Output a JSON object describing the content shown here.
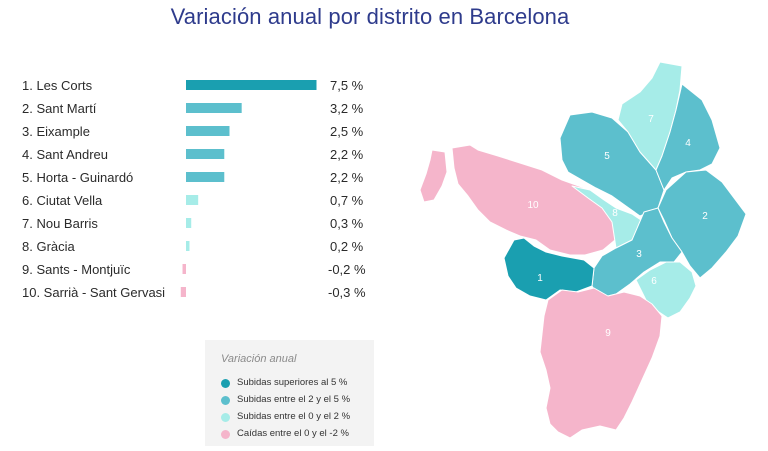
{
  "title": "Variación anual por distrito en Barcelona",
  "colors": {
    "strong_teal": "#1a9fb0",
    "medium_teal": "#5cbfcd",
    "light_teal": "#a6ece8",
    "pink": "#f5b5cb"
  },
  "chart_data": {
    "type": "bar",
    "orientation": "horizontal",
    "title": "Variación anual por distrito en Barcelona",
    "categories": [
      "1. Les Corts",
      "2. Sant Martí",
      "3. Eixample",
      "4. Sant Andreu",
      "5. Horta - Guinardó",
      "6. Ciutat Vella",
      "7. Nou Barris",
      "8. Gràcia",
      "9. Sants - Montjuïc",
      "10. Sarrià - Sant Gervasi"
    ],
    "values": [
      7.5,
      3.2,
      2.5,
      2.2,
      2.2,
      0.7,
      0.3,
      0.2,
      -0.2,
      -0.3
    ],
    "value_labels": [
      "7,5 %",
      "3,2 %",
      "2,5 %",
      "2,2 %",
      "2,2 %",
      "0,7 %",
      "0,3 %",
      "0,2 %",
      "-0,2 %",
      "-0,3 %"
    ],
    "grid": false,
    "legend": "bottom-center"
  },
  "map": {
    "districts": [
      {
        "number": "1",
        "category": "strong_teal"
      },
      {
        "number": "2",
        "category": "medium_teal"
      },
      {
        "number": "3",
        "category": "medium_teal"
      },
      {
        "number": "4",
        "category": "medium_teal"
      },
      {
        "number": "5",
        "category": "medium_teal"
      },
      {
        "number": "6",
        "category": "light_teal"
      },
      {
        "number": "7",
        "category": "light_teal"
      },
      {
        "number": "8",
        "category": "light_teal"
      },
      {
        "number": "9",
        "category": "pink"
      },
      {
        "number": "10",
        "category": "pink"
      }
    ]
  },
  "legend": {
    "title": "Variación anual",
    "items": [
      {
        "label": "Subidas superiores al 5 %",
        "color": "#1a9fb0"
      },
      {
        "label": "Subidas entre el 2 y el 5 %",
        "color": "#5cbfcd"
      },
      {
        "label": "Subidas entre el 0 y el 2 %",
        "color": "#a6ece8"
      },
      {
        "label": "Caídas entre el 0 y el -2 %",
        "color": "#f5b5cb"
      }
    ]
  }
}
